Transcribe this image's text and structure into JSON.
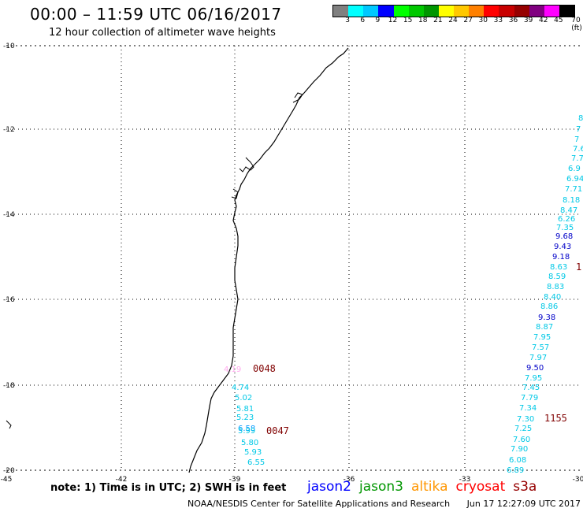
{
  "title": "00:00 – 11:59 UTC 06/16/2017",
  "subtitle": "12 hour collection of altimeter wave heights",
  "colorbar": {
    "colors": [
      "#808080",
      "#00ffff",
      "#00c8ff",
      "#0000ff",
      "#00ff00",
      "#00c800",
      "#009600",
      "#ffff00",
      "#ffc800",
      "#ff8000",
      "#ff0000",
      "#c80000",
      "#960000",
      "#800080",
      "#ff00ff",
      "#000000"
    ],
    "labels": [
      "3",
      "6",
      "9",
      "12",
      "15",
      "18",
      "21",
      "24",
      "27",
      "30",
      "33",
      "36",
      "39",
      "42",
      "45",
      "70 (ft)"
    ]
  },
  "axes": {
    "lat_labels": [
      "-10",
      "-12",
      "-14",
      "-16",
      "-18",
      "-20"
    ],
    "lon_labels": [
      "-45",
      "-42",
      "-39",
      "-36",
      "-33",
      "-30"
    ]
  },
  "passes": [
    {
      "time": "0048",
      "color": "#800000"
    },
    {
      "time": "0047",
      "color": "#800000"
    },
    {
      "time": "1155",
      "color": "#800000"
    },
    {
      "time": "1",
      "color": "#800000"
    }
  ],
  "wave_heights": {
    "track_a": [
      {
        "v": "4.19",
        "c": "#ffaaee"
      },
      {
        "v": "4.74",
        "c": "#00c8e6"
      },
      {
        "v": "5.02",
        "c": "#00c8e6"
      },
      {
        "v": "5.81",
        "c": "#00c8e6"
      },
      {
        "v": "5.23",
        "c": "#00c8e6"
      },
      {
        "v": "6.58",
        "c": "#0096ff"
      },
      {
        "v": "5.99",
        "c": "#00c8e6"
      },
      {
        "v": "5.80",
        "c": "#00c8e6"
      },
      {
        "v": "5.93",
        "c": "#00c8e6"
      },
      {
        "v": "6.55",
        "c": "#00c8e6"
      }
    ],
    "track_b": [
      {
        "v": "8",
        "c": "#00c8e6"
      },
      {
        "v": "7",
        "c": "#00c8e6"
      },
      {
        "v": "7",
        "c": "#00c8e6"
      },
      {
        "v": "7.6",
        "c": "#00c8e6"
      },
      {
        "v": "7.7",
        "c": "#00c8e6"
      },
      {
        "v": "6.9",
        "c": "#00c8e6"
      },
      {
        "v": "6.94",
        "c": "#00c8e6"
      },
      {
        "v": "7.71",
        "c": "#00c8e6"
      },
      {
        "v": "8.18",
        "c": "#00c8e6"
      },
      {
        "v": "8.47",
        "c": "#00c8e6"
      },
      {
        "v": "6.26",
        "c": "#00c8e6"
      },
      {
        "v": "7.35",
        "c": "#00c8e6"
      },
      {
        "v": "9.68",
        "c": "#0000c8"
      },
      {
        "v": "9.43",
        "c": "#0000c8"
      },
      {
        "v": "9.18",
        "c": "#0000c8"
      },
      {
        "v": "8.63",
        "c": "#00c8e6"
      },
      {
        "v": "8.59",
        "c": "#00c8e6"
      },
      {
        "v": "8.83",
        "c": "#00c8e6"
      },
      {
        "v": "8.40",
        "c": "#00c8e6"
      },
      {
        "v": "8.86",
        "c": "#00c8e6"
      },
      {
        "v": "9.38",
        "c": "#0000c8"
      },
      {
        "v": "8.87",
        "c": "#00c8e6"
      },
      {
        "v": "7.95",
        "c": "#00c8e6"
      },
      {
        "v": "7.57",
        "c": "#00c8e6"
      },
      {
        "v": "7.97",
        "c": "#00c8e6"
      },
      {
        "v": "9.50",
        "c": "#0000c8"
      },
      {
        "v": "7.95",
        "c": "#00c8e6"
      },
      {
        "v": "7.45",
        "c": "#00c8e6"
      },
      {
        "v": "7.79",
        "c": "#00c8e6"
      },
      {
        "v": "7.34",
        "c": "#00c8e6"
      },
      {
        "v": "7.30",
        "c": "#00c8e6"
      },
      {
        "v": "7.25",
        "c": "#00c8e6"
      },
      {
        "v": "7.60",
        "c": "#00c8e6"
      },
      {
        "v": "7.90",
        "c": "#00c8e6"
      },
      {
        "v": "6.08",
        "c": "#00c8e6"
      },
      {
        "v": "6.89",
        "c": "#00c8e6"
      }
    ]
  },
  "note": "note: 1) Time is in UTC; 2) SWH is in feet",
  "satellites": [
    {
      "name": "jason2",
      "color": "#0000ff"
    },
    {
      "name": "jason3",
      "color": "#009600"
    },
    {
      "name": "altika",
      "color": "#ff9600"
    },
    {
      "name": "cryosat",
      "color": "#ff0000"
    },
    {
      "name": "s3a",
      "color": "#960000"
    }
  ],
  "footer": {
    "center": "NOAA/NESDIS Center for Satellite Applications and Research",
    "timestamp": "Jun 17 12:27:09 UTC 2017"
  }
}
